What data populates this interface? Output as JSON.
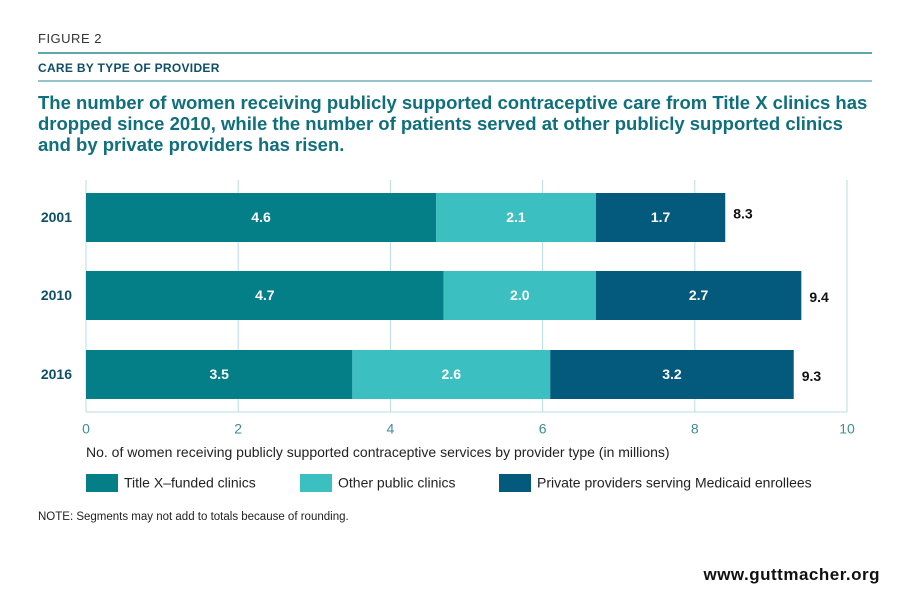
{
  "chart_data": {
    "type": "stacked-bar-horizontal",
    "figure_label": "FIGURE 2",
    "subtitle": "CARE BY TYPE OF PROVIDER",
    "title": "The number of women receiving publicly supported contraceptive care from Title X clinics has dropped since 2010, while the number of patients served at other publicly supported clinics and by private providers has risen.",
    "categories": [
      "2001",
      "2010",
      "2016"
    ],
    "series": [
      {
        "name": "Title X–funded clinics",
        "color": "#057f87",
        "values": [
          4.6,
          4.7,
          3.5
        ],
        "value_labels": [
          "4.6",
          "4.7",
          "3.5"
        ]
      },
      {
        "name": "Other public clinics",
        "color": "#3bbfc1",
        "values": [
          2.1,
          2.0,
          2.6
        ],
        "value_labels": [
          "2.1",
          "2.0",
          "2.6"
        ]
      },
      {
        "name": "Private providers serving Medicaid enrollees",
        "color": "#045a7c",
        "values": [
          1.7,
          2.7,
          3.2
        ],
        "value_labels": [
          "1.7",
          "2.7",
          "3.2"
        ]
      }
    ],
    "totals": [
      8.3,
      9.4,
      9.3
    ],
    "xlim": [
      0,
      10
    ],
    "xticks": [
      0,
      2,
      4,
      6,
      8,
      10
    ],
    "grid": true,
    "x_label": "No. of women receiving publicly supported contraceptive services by provider type (in millions)",
    "note": "NOTE: Segments may not add to totals because of rounding.",
    "source": "www.guttmacher.org"
  }
}
